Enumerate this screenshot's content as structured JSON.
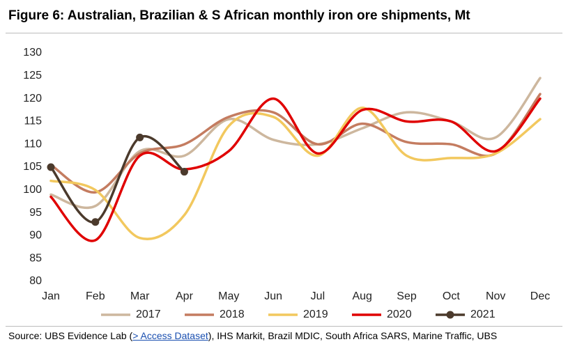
{
  "chart_data": {
    "type": "line",
    "title": "Figure 6: Australian, Brazilian & S African monthly iron ore shipments, Mt",
    "categories": [
      "Jan",
      "Feb",
      "Mar",
      "Apr",
      "May",
      "Jun",
      "Jul",
      "Aug",
      "Sep",
      "Oct",
      "Nov",
      "Dec"
    ],
    "series": [
      {
        "name": "2017",
        "color": "#cdb79e",
        "values": [
          99,
          96.5,
          108.5,
          107.5,
          115.5,
          111,
          110,
          113.5,
          117,
          115,
          111.5,
          124.5
        ]
      },
      {
        "name": "2018",
        "color": "#c47c60",
        "values": [
          105.5,
          99.5,
          108,
          110,
          116,
          117,
          110,
          114.5,
          110.5,
          110,
          108,
          121
        ]
      },
      {
        "name": "2019",
        "color": "#f2c85e",
        "values": [
          102,
          100,
          89.5,
          94.5,
          114,
          116,
          107.5,
          118,
          107.5,
          107,
          108,
          115.5
        ]
      },
      {
        "name": "2020",
        "color": "#e00000",
        "values": [
          98.5,
          89,
          107.5,
          104.5,
          108.5,
          120,
          108,
          117.5,
          115,
          115,
          108.5,
          120
        ]
      },
      {
        "name": "2021",
        "color": "#4b3a2c",
        "markers": true,
        "values": [
          105,
          93,
          111.5,
          104,
          null,
          null,
          null,
          null,
          null,
          null,
          null,
          null
        ]
      }
    ],
    "ylim": [
      80,
      130
    ],
    "yticks": [
      80,
      85,
      90,
      95,
      100,
      105,
      110,
      115,
      120,
      125,
      130
    ],
    "source": {
      "prefix": "Source:  UBS Evidence Lab (",
      "link": "> Access Dataset",
      "suffix": "), IHS Markit, Brazil MDIC, South Africa SARS, Marine Traffic, UBS"
    }
  }
}
